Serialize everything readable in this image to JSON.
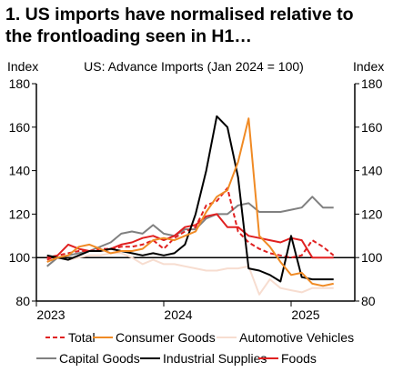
{
  "title": {
    "line1": "1. US imports have normalised relative to",
    "line2": "the frontloading seen in H1…"
  },
  "chart_data": {
    "type": "line",
    "subtitle": "US: Advance Imports (Jan 2024 = 100)",
    "ylabel_left": "Index",
    "ylabel_right": "Index",
    "ylim": [
      80,
      180
    ],
    "yticks": [
      80,
      100,
      120,
      140,
      160,
      180
    ],
    "xlim": [
      0,
      30
    ],
    "xtick_labels": [
      {
        "label": "2023",
        "at": 0
      },
      {
        "label": "2024",
        "at": 12
      },
      {
        "label": "2025",
        "at": 24
      }
    ],
    "x": [
      1,
      2,
      3,
      4,
      5,
      6,
      7,
      8,
      9,
      10,
      11,
      12,
      13,
      14,
      15,
      16,
      17,
      18,
      19,
      20,
      21,
      22,
      23,
      24,
      25,
      26,
      27,
      28
    ],
    "series": [
      {
        "name": "Total",
        "color": "#e02020",
        "dash": "5,3",
        "values": [
          99,
          101,
          102,
          103,
          103,
          104,
          104,
          105,
          105,
          106,
          108,
          104,
          109,
          112,
          114,
          124,
          126,
          132,
          112,
          107,
          104,
          102,
          101,
          100,
          101,
          108,
          105,
          101
        ]
      },
      {
        "name": "Consumer Goods",
        "color": "#f08a24",
        "dash": "",
        "values": [
          98,
          100,
          101,
          105,
          106,
          104,
          102,
          103,
          103,
          104,
          108,
          109,
          108,
          110,
          112,
          121,
          128,
          131,
          144,
          164,
          110,
          105,
          98,
          92,
          93,
          88,
          87,
          88
        ]
      },
      {
        "name": "Automotive Vehicles",
        "color": "#f7ddd0",
        "dash": "",
        "values": [
          98,
          100,
          99,
          100,
          101,
          101,
          102,
          102,
          100,
          97,
          99,
          97,
          97,
          96,
          95,
          94,
          94,
          95,
          95,
          96,
          83,
          90,
          86,
          85,
          84,
          86,
          86,
          86
        ]
      },
      {
        "name": "Capital Goods",
        "color": "#808080",
        "dash": "",
        "values": [
          96,
          100,
          101,
          102,
          103,
          105,
          107,
          111,
          112,
          111,
          115,
          111,
          110,
          113,
          113,
          118,
          120,
          120,
          124,
          125,
          121,
          121,
          121,
          122,
          123,
          128,
          123,
          123
        ]
      },
      {
        "name": "Industrial Supplies",
        "color": "#000000",
        "dash": "",
        "values": [
          101,
          100,
          99,
          101,
          103,
          103,
          104,
          103,
          102,
          101,
          102,
          101,
          102,
          106,
          120,
          140,
          165,
          160,
          137,
          95,
          94,
          92,
          89,
          110,
          91,
          90,
          90,
          90
        ]
      },
      {
        "name": "Foods",
        "color": "#e02020",
        "dash": "",
        "values": [
          100,
          101,
          106,
          104,
          103,
          103,
          104,
          106,
          107,
          109,
          110,
          108,
          110,
          114,
          115,
          119,
          120,
          114,
          114,
          110,
          109,
          108,
          107,
          109,
          108,
          100,
          100,
          100
        ]
      }
    ],
    "legend_position": "bottom",
    "grid": false
  }
}
